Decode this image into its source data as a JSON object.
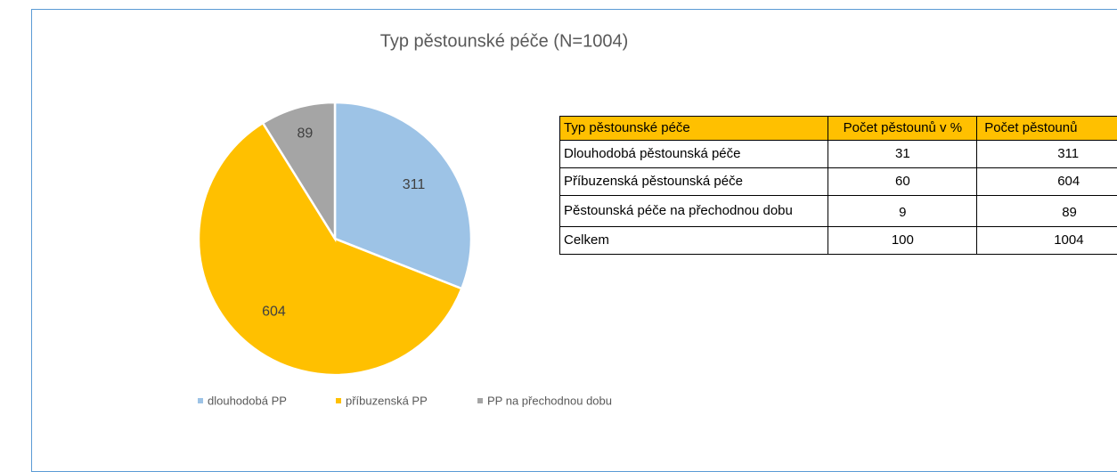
{
  "chart_data": {
    "type": "pie",
    "title": "Typ pěstounské péče (N=1004)",
    "categories": [
      "dlouhodobá PP",
      "příbuzenská PP",
      "PP na přechodnou dobu"
    ],
    "values": [
      311,
      604,
      89
    ],
    "colors": [
      "#9dc3e6",
      "#ffc000",
      "#a5a5a5"
    ],
    "legend": "bottom"
  },
  "table": {
    "header": [
      "Typ pěstounské péče",
      "Počet pěstounů v %",
      "Počet pěstounů"
    ],
    "rows": [
      [
        "Dlouhodobá pěstounská péče",
        31,
        311
      ],
      [
        "Příbuzenská pěstounská péče",
        60,
        604
      ],
      [
        "Pěstounská péče na přechodnou dobu",
        9,
        89
      ],
      [
        "Celkem",
        100,
        1004
      ]
    ]
  }
}
